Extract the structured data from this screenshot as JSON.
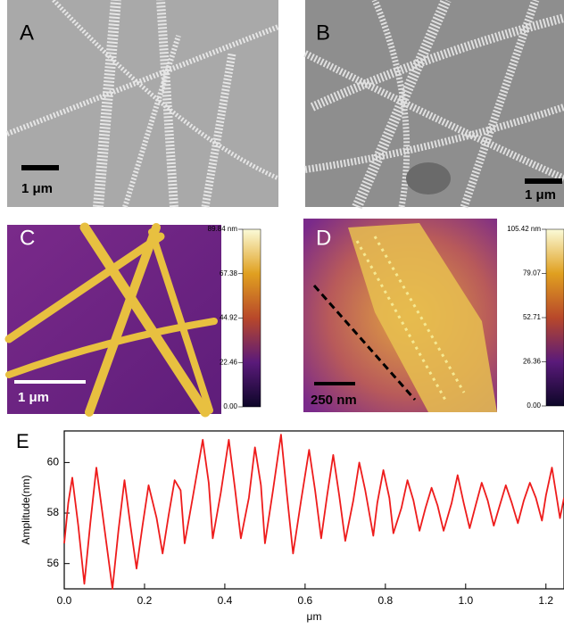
{
  "panels": [
    {
      "label": "A",
      "scale_bar": "1 μm"
    },
    {
      "label": "B",
      "scale_bar": "1 μm"
    },
    {
      "label": "C",
      "scale_bar": "1 μm",
      "colorbar": {
        "range": [
          0,
          89.84
        ],
        "ticks": [
          {
            "value": 89.84,
            "label": "89.84 nm"
          },
          {
            "value": 67.38,
            "label": "67.38"
          },
          {
            "value": 44.92,
            "label": "44.92"
          },
          {
            "value": 22.46,
            "label": "22.46"
          },
          {
            "value": 0,
            "label": "0.00"
          }
        ]
      }
    },
    {
      "label": "D",
      "scale_bar": "250 nm",
      "colorbar": {
        "range": [
          0,
          105.42
        ],
        "ticks": [
          {
            "value": 105.42,
            "label": "105.42 nm"
          },
          {
            "value": 79.07,
            "label": "79.07"
          },
          {
            "value": 52.71,
            "label": "52.71"
          },
          {
            "value": 26.36,
            "label": "26.36"
          },
          {
            "value": 0,
            "label": "0.00"
          }
        ]
      }
    }
  ],
  "chart_data": {
    "type": "line",
    "panel_label": "E",
    "x_label": "μm",
    "y_label": "Amplitude(nm)",
    "color": "#ee1c1c",
    "x": [
      0,
      0.01,
      0.02,
      0.035,
      0.05,
      0.065,
      0.08,
      0.1,
      0.12,
      0.135,
      0.15,
      0.165,
      0.18,
      0.195,
      0.21,
      0.23,
      0.245,
      0.26,
      0.275,
      0.29,
      0.3,
      0.32,
      0.345,
      0.36,
      0.37,
      0.39,
      0.41,
      0.425,
      0.44,
      0.46,
      0.475,
      0.49,
      0.5,
      0.52,
      0.54,
      0.555,
      0.57,
      0.59,
      0.61,
      0.625,
      0.64,
      0.655,
      0.67,
      0.685,
      0.7,
      0.72,
      0.735,
      0.75,
      0.77,
      0.78,
      0.795,
      0.81,
      0.82,
      0.84,
      0.855,
      0.87,
      0.885,
      0.9,
      0.915,
      0.93,
      0.945,
      0.965,
      0.98,
      0.995,
      1.01,
      1.025,
      1.04,
      1.055,
      1.07,
      1.085,
      1.1,
      1.115,
      1.13,
      1.145,
      1.16,
      1.175,
      1.19,
      1.2,
      1.215,
      1.225,
      1.235,
      1.245
    ],
    "values": [
      56.8,
      58.4,
      59.4,
      57.5,
      55.2,
      57.6,
      59.8,
      57.4,
      55.0,
      57.3,
      59.3,
      57.5,
      55.8,
      57.5,
      59.1,
      57.8,
      56.4,
      57.9,
      59.3,
      58.9,
      56.8,
      58.6,
      60.9,
      59.2,
      57.0,
      58.8,
      60.9,
      59.0,
      57.0,
      58.6,
      60.6,
      59.1,
      56.8,
      58.9,
      61.1,
      58.7,
      56.4,
      58.5,
      60.5,
      58.9,
      57.0,
      58.7,
      60.3,
      58.7,
      56.9,
      58.5,
      60.0,
      58.9,
      57.1,
      58.4,
      59.7,
      58.6,
      57.2,
      58.2,
      59.3,
      58.5,
      57.3,
      58.2,
      59.0,
      58.3,
      57.3,
      58.4,
      59.5,
      58.4,
      57.4,
      58.3,
      59.2,
      58.5,
      57.5,
      58.3,
      59.1,
      58.4,
      57.6,
      58.5,
      59.2,
      58.6,
      57.7,
      58.7,
      59.8,
      58.8,
      57.8,
      58.6
    ],
    "xlim": [
      0,
      1.245
    ],
    "ylim": [
      55,
      61.25
    ],
    "xticks": [
      {
        "value": 0,
        "label": "0.0"
      },
      {
        "value": 0.2,
        "label": "0.2"
      },
      {
        "value": 0.4,
        "label": "0.4"
      },
      {
        "value": 0.6,
        "label": "0.6"
      },
      {
        "value": 0.8,
        "label": "0.8"
      },
      {
        "value": 1.0,
        "label": "1.0"
      },
      {
        "value": 1.2,
        "label": "1.2"
      }
    ],
    "yticks": [
      56,
      58,
      60
    ]
  }
}
